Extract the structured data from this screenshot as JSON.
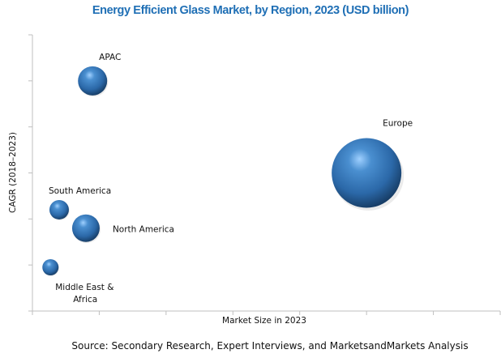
{
  "chart_data": {
    "type": "bubble",
    "title": "Energy Efficient Glass Market, by Region, 2023 (USD billion)",
    "xlabel": "Market Size in 2023",
    "ylabel": "CAGR (2018–2023)",
    "source": "Source: Secondary Research, Expert Interviews, and MarketsandMarkets Analysis",
    "xlim": [
      0,
      7
    ],
    "ylim": [
      0,
      6
    ],
    "x_ticks": [
      0,
      1,
      2,
      3,
      4,
      5,
      6,
      7
    ],
    "y_ticks": [
      0,
      1,
      2,
      3,
      4,
      5,
      6
    ],
    "tick_labels_shown": false,
    "grid": false,
    "bubble_color": "#2e75b6",
    "series": [
      {
        "name": "APAC",
        "x": 0.9,
        "y": 5.0,
        "size": 18,
        "label_lines": [
          "APAC"
        ]
      },
      {
        "name": "Europe",
        "x": 5.0,
        "y": 3.0,
        "size": 43,
        "label_lines": [
          "Europe"
        ]
      },
      {
        "name": "South America",
        "x": 0.4,
        "y": 2.2,
        "size": 12,
        "label_lines": [
          "South America"
        ]
      },
      {
        "name": "North America",
        "x": 0.8,
        "y": 1.8,
        "size": 17,
        "label_lines": [
          "North America"
        ]
      },
      {
        "name": "Middle East & Africa",
        "x": 0.27,
        "y": 0.95,
        "size": 10,
        "label_lines": [
          "Middle East &",
          "Africa"
        ]
      }
    ]
  }
}
